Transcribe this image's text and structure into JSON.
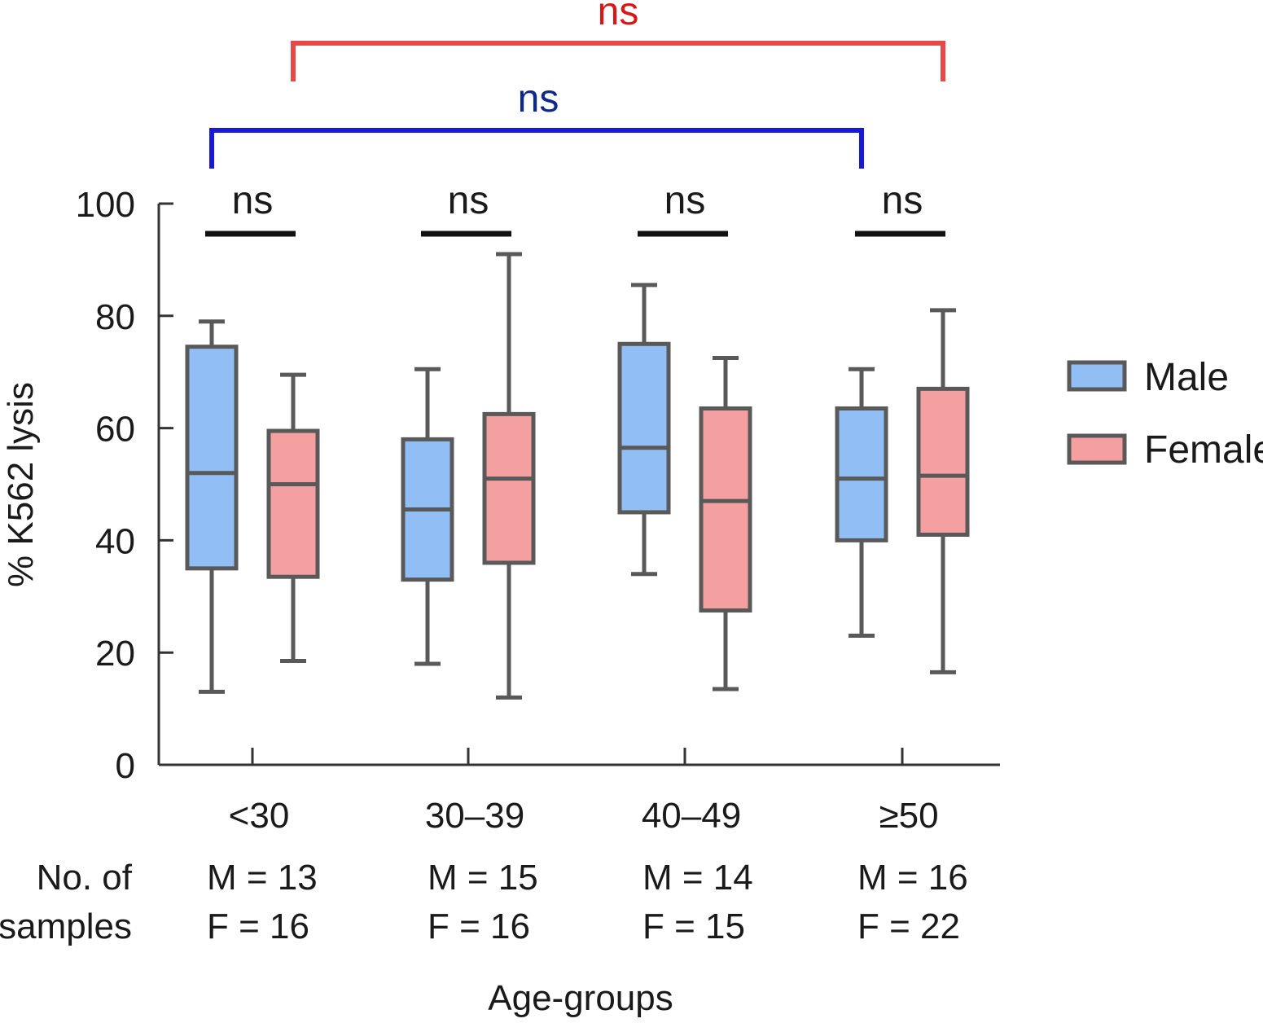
{
  "chart_data": {
    "type": "boxplot",
    "ylabel": "% K562 lysis",
    "xlabel": "Age-groups",
    "ylim": [
      0,
      100
    ],
    "yticks": [
      0,
      20,
      40,
      60,
      80,
      100
    ],
    "categories": [
      "<30",
      "30–39",
      "40–49",
      "≥50"
    ],
    "series": [
      {
        "name": "Male",
        "color": "#91bff5",
        "boxes": [
          {
            "min": 13,
            "q1": 35,
            "median": 52,
            "q3": 74.5,
            "max": 79
          },
          {
            "min": 18,
            "q1": 33,
            "median": 45.5,
            "q3": 58,
            "max": 70.5
          },
          {
            "min": 34,
            "q1": 45,
            "median": 56.5,
            "q3": 75,
            "max": 85.5
          },
          {
            "min": 23,
            "q1": 40,
            "median": 51,
            "q3": 63.5,
            "max": 70.5
          }
        ]
      },
      {
        "name": "Female",
        "color": "#f5a0a0",
        "boxes": [
          {
            "min": 18.5,
            "q1": 33.5,
            "median": 50,
            "q3": 59.5,
            "max": 69.5
          },
          {
            "min": 12,
            "q1": 36,
            "median": 51,
            "q3": 62.5,
            "max": 91
          },
          {
            "min": 13.5,
            "q1": 27.5,
            "median": 47,
            "q3": 63.5,
            "max": 72.5
          },
          {
            "min": 16.5,
            "q1": 41,
            "median": 51.5,
            "q3": 67,
            "max": 81
          }
        ]
      }
    ],
    "sample_counts": {
      "label_line1": "No. of",
      "label_line2": "samples",
      "male": [
        "M = 13",
        "M = 15",
        "M = 14",
        "M = 16"
      ],
      "female": [
        "F = 16",
        "F = 16",
        "F = 15",
        "F = 22"
      ]
    },
    "significance": {
      "pairwise": [
        "ns",
        "ns",
        "ns",
        "ns"
      ],
      "male_across": {
        "label": "ns",
        "color": "#1818d8",
        "text_color": "#0d2a8a",
        "from": 0,
        "to": 3
      },
      "female_across": {
        "label": "ns",
        "color": "#e84848",
        "text_color": "#d81818",
        "from": 0,
        "to": 3
      }
    },
    "legend": {
      "placement": "right",
      "items": [
        "Male",
        "Female"
      ]
    }
  }
}
